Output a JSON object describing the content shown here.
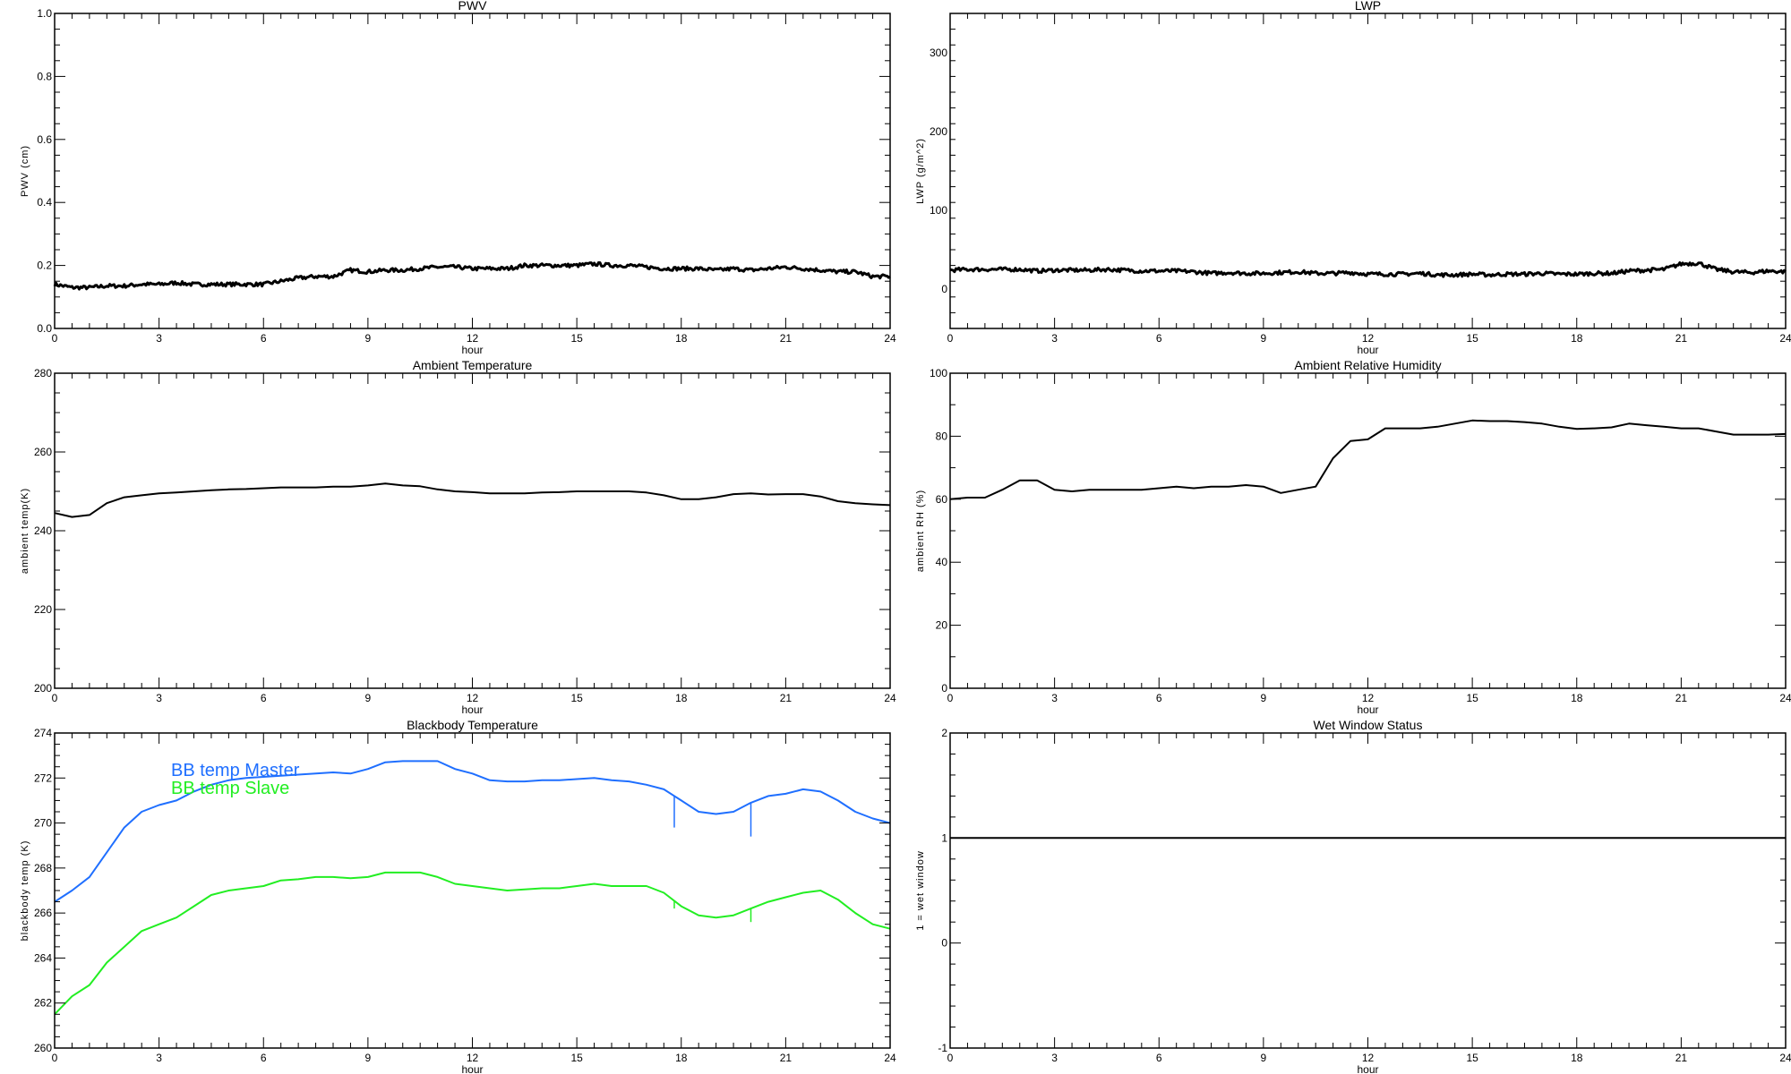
{
  "colors": {
    "axis": "#000000",
    "line": "#000000",
    "master": "#1f6fff",
    "slave": "#22ee22"
  },
  "chart_data": [
    {
      "type": "line",
      "id": "pwv",
      "title": "PWV",
      "xlabel": "hour",
      "ylabel": "PWV (cm)",
      "xlim": [
        0,
        24
      ],
      "ylim": [
        0,
        1.0
      ],
      "xticks": [
        0,
        3,
        6,
        9,
        12,
        15,
        18,
        21,
        24
      ],
      "xminor": 0.5,
      "yticks": [
        0.0,
        0.2,
        0.4,
        0.6,
        0.8,
        1.0
      ],
      "ytick_labels": [
        "0.0",
        "0.2",
        "0.4",
        "0.6",
        "0.8",
        "1.0"
      ],
      "yminor": 0.05,
      "noisy": true,
      "series": [
        {
          "name": "PWV",
          "color": "#000000",
          "x_step": 0.5,
          "values": [
            0.14,
            0.13,
            0.13,
            0.135,
            0.135,
            0.14,
            0.14,
            0.145,
            0.14,
            0.14,
            0.14,
            0.14,
            0.14,
            0.15,
            0.16,
            0.165,
            0.165,
            0.185,
            0.18,
            0.185,
            0.185,
            0.19,
            0.195,
            0.195,
            0.19,
            0.19,
            0.19,
            0.2,
            0.2,
            0.2,
            0.2,
            0.205,
            0.2,
            0.2,
            0.195,
            0.19,
            0.19,
            0.19,
            0.185,
            0.19,
            0.185,
            0.19,
            0.195,
            0.19,
            0.185,
            0.18,
            0.18,
            0.165,
            0.165
          ]
        }
      ]
    },
    {
      "type": "line",
      "id": "lwp",
      "title": "LWP",
      "xlabel": "hour",
      "ylabel": "LWP (g/m^2)",
      "xlim": [
        0,
        24
      ],
      "ylim": [
        -50,
        350
      ],
      "xticks": [
        0,
        3,
        6,
        9,
        12,
        15,
        18,
        21,
        24
      ],
      "xminor": 0.5,
      "yticks": [
        0,
        100,
        200,
        300
      ],
      "ytick_labels": [
        "0",
        "100",
        "200",
        "300"
      ],
      "yminor": 20,
      "noisy": true,
      "series": [
        {
          "name": "LWP",
          "color": "#000000",
          "x_step": 0.5,
          "values": [
            24,
            25,
            25,
            25,
            25,
            23,
            24,
            24,
            24,
            25,
            24,
            23,
            23,
            23,
            22,
            20,
            21,
            20,
            20,
            21,
            22,
            20,
            20,
            21,
            19,
            19,
            19,
            20,
            18,
            18,
            19,
            18,
            19,
            19,
            20,
            19,
            19,
            20,
            20,
            23,
            24,
            25,
            32,
            33,
            25,
            22,
            21,
            23,
            22
          ]
        }
      ]
    },
    {
      "type": "line",
      "id": "ambient-temp",
      "title": "Ambient Temperature",
      "xlabel": "hour",
      "ylabel": "ambient temp(K)",
      "xlim": [
        0,
        24
      ],
      "ylim": [
        200,
        280
      ],
      "xticks": [
        0,
        3,
        6,
        9,
        12,
        15,
        18,
        21,
        24
      ],
      "xminor": 0.5,
      "yticks": [
        200,
        220,
        240,
        260,
        280
      ],
      "ytick_labels": [
        "200",
        "220",
        "240",
        "260",
        "280"
      ],
      "yminor": 5,
      "series": [
        {
          "name": "ambient temp",
          "color": "#000000",
          "x_step": 0.5,
          "values": [
            244.5,
            243.5,
            244,
            247,
            248.5,
            249,
            249.5,
            249.7,
            250,
            250.3,
            250.5,
            250.6,
            250.8,
            251,
            251,
            251,
            251.2,
            251.2,
            251.5,
            252,
            251.5,
            251.3,
            250.5,
            250,
            249.8,
            249.5,
            249.5,
            249.5,
            249.7,
            249.8,
            250,
            250,
            250,
            250,
            249.7,
            249,
            248,
            248,
            248.5,
            249.3,
            249.5,
            249.2,
            249.3,
            249.3,
            248.7,
            247.5,
            247,
            246.7,
            246.5
          ]
        }
      ]
    },
    {
      "type": "line",
      "id": "ambient-rh",
      "title": "Ambient Relative Humidity",
      "xlabel": "hour",
      "ylabel": "ambient RH (%)",
      "xlim": [
        0,
        24
      ],
      "ylim": [
        0,
        100
      ],
      "xticks": [
        0,
        3,
        6,
        9,
        12,
        15,
        18,
        21,
        24
      ],
      "xminor": 0.5,
      "yticks": [
        0,
        20,
        40,
        60,
        80,
        100
      ],
      "ytick_labels": [
        "0",
        "20",
        "40",
        "60",
        "80",
        "100"
      ],
      "yminor": 10,
      "series": [
        {
          "name": "ambient RH",
          "color": "#000000",
          "x_step": 0.5,
          "values": [
            60,
            60.5,
            60.5,
            63,
            66,
            66,
            63,
            62.5,
            63,
            63,
            63,
            63,
            63.5,
            64,
            63.5,
            64,
            64,
            64.5,
            64,
            62,
            63,
            64,
            73,
            78.5,
            79,
            82.5,
            82.5,
            82.5,
            83,
            84,
            85,
            84.8,
            84.8,
            84.5,
            84,
            83,
            82.3,
            82.5,
            82.8,
            84,
            83.5,
            83,
            82.5,
            82.5,
            81.5,
            80.5,
            80.5,
            80.5,
            80.7
          ]
        }
      ]
    },
    {
      "type": "line",
      "id": "blackbody-temp",
      "title": "Blackbody Temperature",
      "xlabel": "hour",
      "ylabel": "blackbody temp (K)",
      "xlim": [
        0,
        24
      ],
      "ylim": [
        260,
        274
      ],
      "xticks": [
        0,
        3,
        6,
        9,
        12,
        15,
        18,
        21,
        24
      ],
      "xminor": 0.5,
      "yticks": [
        260,
        262,
        264,
        266,
        268,
        270,
        272,
        274
      ],
      "ytick_labels": [
        "260",
        "262",
        "264",
        "266",
        "268",
        "270",
        "272",
        "274"
      ],
      "yminor": 0.5,
      "legend": "top-left",
      "series": [
        {
          "name": "BB temp Master",
          "color": "#1f6fff",
          "x_step": 0.5,
          "values": [
            266.5,
            267,
            267.6,
            268.7,
            269.8,
            270.5,
            270.8,
            271,
            271.4,
            271.7,
            271.9,
            272,
            272.05,
            272.1,
            272.15,
            272.2,
            272.25,
            272.2,
            272.4,
            272.7,
            272.75,
            272.75,
            272.75,
            272.4,
            272.2,
            271.9,
            271.85,
            271.85,
            271.9,
            271.9,
            271.95,
            272,
            271.9,
            271.85,
            271.7,
            271.5,
            271,
            270.5,
            270.4,
            270.5,
            270.9,
            271.2,
            271.3,
            271.5,
            271.4,
            271,
            270.5,
            270.2,
            270
          ],
          "spikes": [
            [
              17.8,
              269.8
            ],
            [
              20.0,
              269.4
            ]
          ]
        },
        {
          "name": "BB temp Slave",
          "color": "#22ee22",
          "x_step": 0.5,
          "values": [
            261.5,
            262.3,
            262.8,
            263.8,
            264.5,
            265.2,
            265.5,
            265.8,
            266.3,
            266.8,
            267,
            267.1,
            267.2,
            267.45,
            267.5,
            267.6,
            267.6,
            267.55,
            267.6,
            267.8,
            267.8,
            267.8,
            267.6,
            267.3,
            267.2,
            267.1,
            267,
            267.05,
            267.1,
            267.1,
            267.2,
            267.3,
            267.2,
            267.2,
            267.2,
            266.9,
            266.3,
            265.9,
            265.8,
            265.9,
            266.2,
            266.5,
            266.7,
            266.9,
            267,
            266.6,
            266,
            265.5,
            265.3
          ],
          "spikes": [
            [
              17.8,
              266.2
            ],
            [
              20.0,
              265.6
            ]
          ]
        }
      ]
    },
    {
      "type": "line",
      "id": "wet-window",
      "title": "Wet Window Status",
      "xlabel": "hour",
      "ylabel": "1 = wet window",
      "xlim": [
        0,
        24
      ],
      "ylim": [
        -1,
        2
      ],
      "xticks": [
        0,
        3,
        6,
        9,
        12,
        15,
        18,
        21,
        24
      ],
      "xminor": 0.5,
      "yticks": [
        -1,
        0,
        1,
        2
      ],
      "ytick_labels": [
        "-1",
        "0",
        "1",
        "2"
      ],
      "yminor": 0.2,
      "series": [
        {
          "name": "wet window status",
          "color": "#000000",
          "x_step": 24,
          "values": [
            1,
            1
          ]
        }
      ]
    }
  ]
}
